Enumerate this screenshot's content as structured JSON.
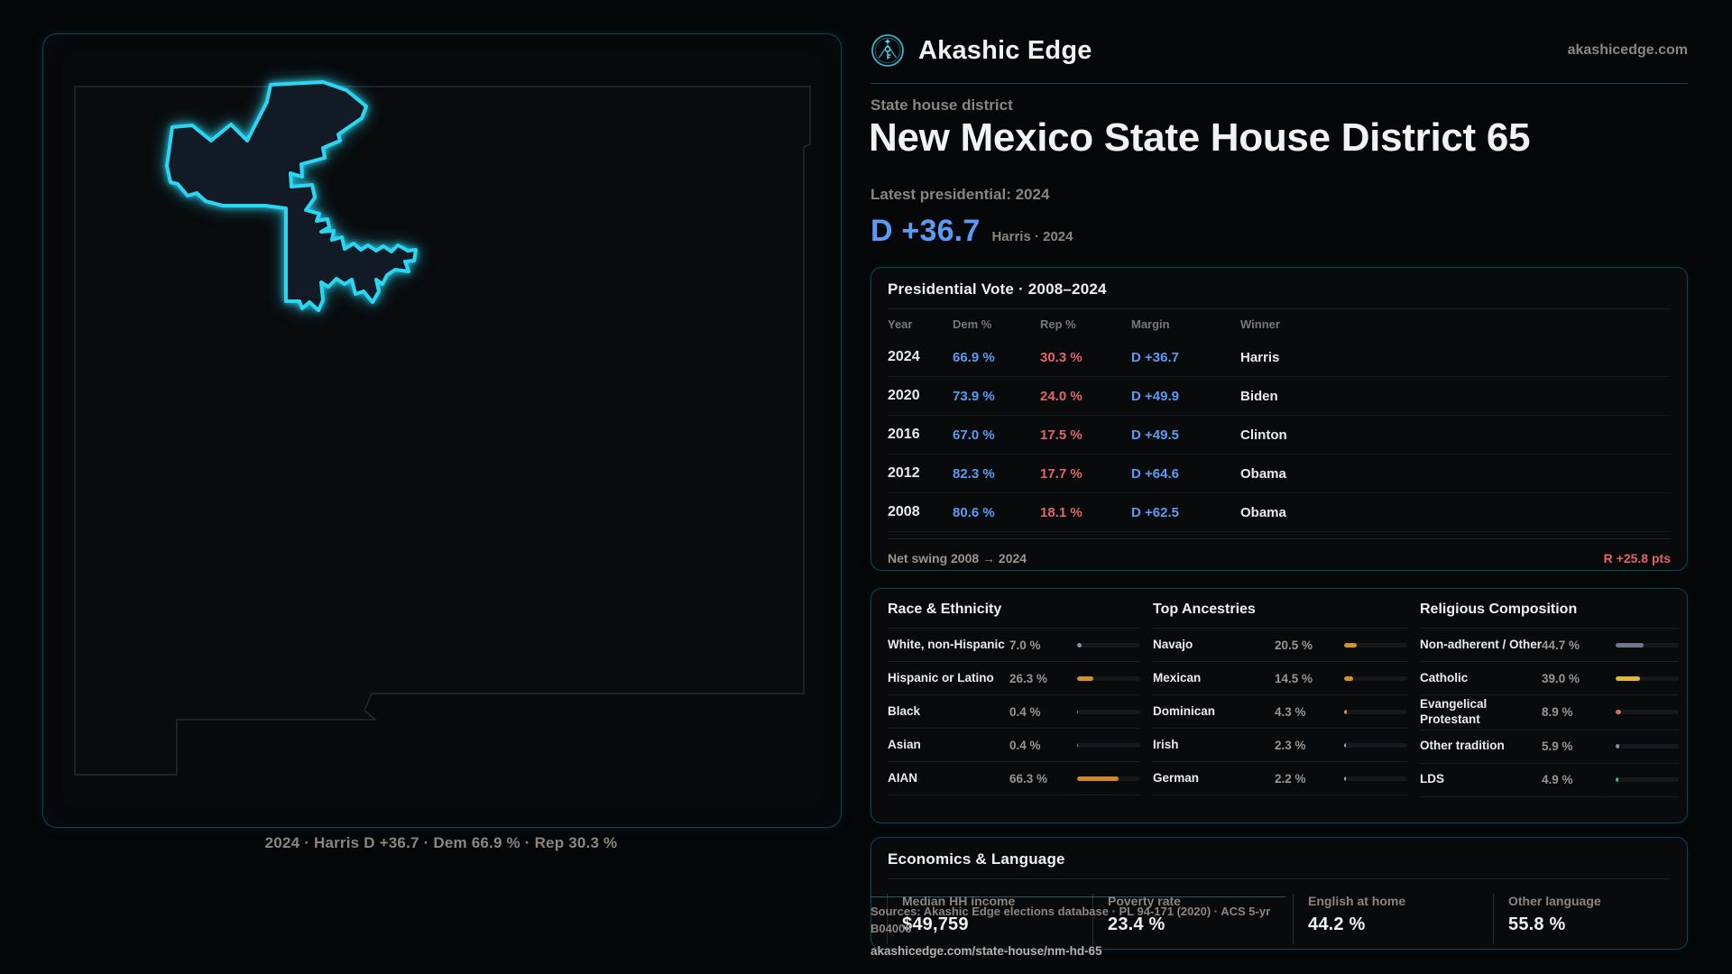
{
  "theme": {
    "background": "#050708",
    "panel_bg": "#080a0c",
    "panel_border": "#10434e",
    "accent_cyan": "#2bd6f3",
    "dem": "#5b9bf2",
    "rep": "#e2646c",
    "text_primary": "#eef0f2",
    "text_muted": "#8b847f"
  },
  "header": {
    "brand": "Akashic Edge",
    "domain": "akashicedge.com",
    "eyebrow": "State house district",
    "title": "New Mexico State House District 65",
    "subtitle": "Latest presidential: 2024",
    "lead_margin": "D +36.7",
    "lead_note": "Harris · 2024"
  },
  "map": {
    "caption": "2024 · Harris D +36.7 · Dem 66.9 % · Rep 30.3 %"
  },
  "presidential_table": {
    "title": "Presidential Vote · 2008–2024",
    "columns": [
      "Year",
      "Dem %",
      "Rep %",
      "Margin",
      "Winner"
    ],
    "rows": [
      {
        "year": "2024",
        "dem": "66.9 %",
        "rep": "30.3 %",
        "margin": "D +36.7",
        "winner": "Harris"
      },
      {
        "year": "2020",
        "dem": "73.9 %",
        "rep": "24.0 %",
        "margin": "D +49.9",
        "winner": "Biden"
      },
      {
        "year": "2016",
        "dem": "67.0 %",
        "rep": "17.5 %",
        "margin": "D +49.5",
        "winner": "Clinton"
      },
      {
        "year": "2012",
        "dem": "82.3 %",
        "rep": "17.7 %",
        "margin": "D +64.6",
        "winner": "Obama"
      },
      {
        "year": "2008",
        "dem": "80.6 %",
        "rep": "18.1 %",
        "margin": "D +62.5",
        "winner": "Obama"
      }
    ],
    "footer_label": "Net swing 2008 → 2024",
    "footer_value": "R +25.8 pts"
  },
  "demographics": {
    "groups": [
      {
        "title": "Race & Ethnicity",
        "rows": [
          {
            "label": "White, non-Hispanic",
            "value": "7.0 %",
            "pct": 7.0,
            "color": "#8095ab"
          },
          {
            "label": "Hispanic or Latino",
            "value": "26.3 %",
            "pct": 26.3,
            "color": "#cf952c"
          },
          {
            "label": "Black",
            "value": "0.4 %",
            "pct": 0.4,
            "color": "#8b7cf0"
          },
          {
            "label": "Asian",
            "value": "0.4 %",
            "pct": 0.4,
            "color": "#33c9a2"
          },
          {
            "label": "AIAN",
            "value": "66.3 %",
            "pct": 66.3,
            "color": "#d18a20"
          }
        ]
      },
      {
        "title": "Top Ancestries",
        "rows": [
          {
            "label": "Navajo",
            "value": "20.5 %",
            "pct": 20.5,
            "color": "#cf952c"
          },
          {
            "label": "Mexican",
            "value": "14.5 %",
            "pct": 14.5,
            "color": "#cf952c"
          },
          {
            "label": "Dominican",
            "value": "4.3 %",
            "pct": 4.3,
            "color": "#cf952c"
          },
          {
            "label": "Irish",
            "value": "2.3 %",
            "pct": 2.3,
            "color": "#a9aeb5"
          },
          {
            "label": "German",
            "value": "2.2 %",
            "pct": 2.2,
            "color": "#a9aeb5"
          }
        ]
      },
      {
        "title": "Religious Composition",
        "rows": [
          {
            "label": "Non-adherent / Other",
            "value": "44.7 %",
            "pct": 44.7,
            "color": "#6e7789"
          },
          {
            "label": "Catholic",
            "value": "39.0 %",
            "pct": 39.0,
            "color": "#ddbb35"
          },
          {
            "label": "Evangelical Protestant",
            "value": "8.9 %",
            "pct": 8.9,
            "color": "#df6a6a"
          },
          {
            "label": "Other tradition",
            "value": "5.9 %",
            "pct": 5.9,
            "color": "#8a9099"
          },
          {
            "label": "LDS",
            "value": "4.9 %",
            "pct": 4.9,
            "color": "#2cc4ae"
          }
        ]
      }
    ]
  },
  "economics": {
    "title": "Economics & Language",
    "stats": [
      {
        "label": "Median HH income",
        "value": "$49,759"
      },
      {
        "label": "Poverty rate",
        "value": "23.4 %"
      },
      {
        "label": "English at home",
        "value": "44.2 %"
      },
      {
        "label": "Other language",
        "value": "55.8 %"
      }
    ]
  },
  "footer": {
    "sources": "Sources: Akashic Edge elections database · PL 94-171 (2020) · ACS 5-yr B04006",
    "permalink": "akashicedge.com/state-house/nm-hd-65"
  }
}
